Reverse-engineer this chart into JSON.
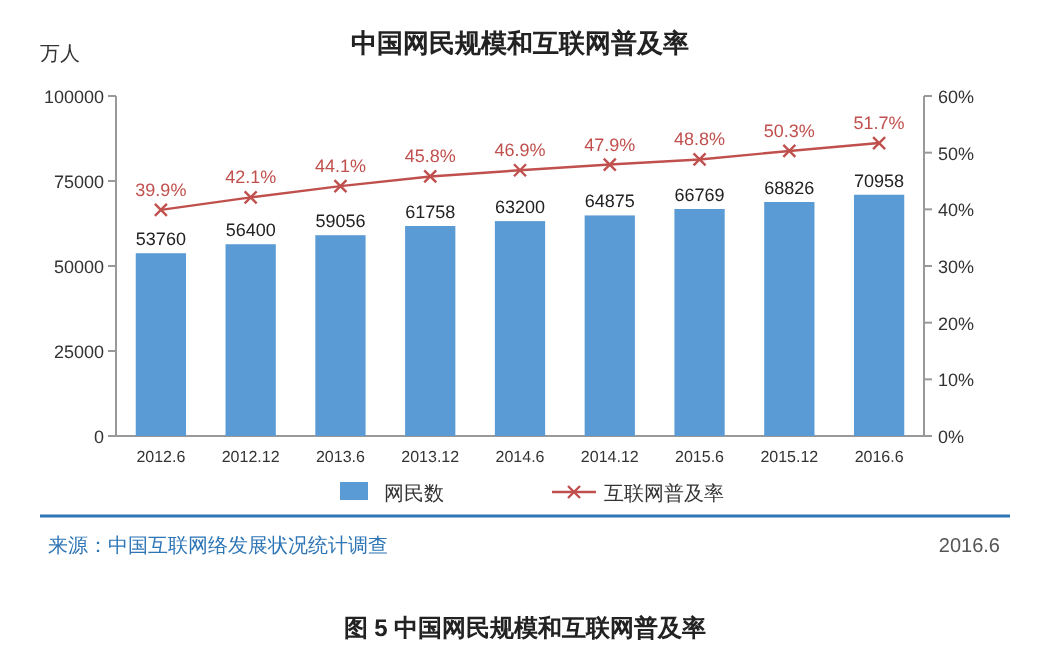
{
  "chart_data": {
    "type": "bar",
    "title": "中国网民规模和互联网普及率",
    "ylabel": "万人",
    "categories": [
      "2012.6",
      "2012.12",
      "2013.6",
      "2013.12",
      "2014.6",
      "2014.12",
      "2015.6",
      "2015.12",
      "2016.6"
    ],
    "series": [
      {
        "name": "网民数",
        "color": "#5b9bd5",
        "values": [
          53760,
          56400,
          59056,
          61758,
          63200,
          64875,
          66769,
          68826,
          70958
        ],
        "value_labels": [
          "53760",
          "56400",
          "59056",
          "61758",
          "63200",
          "64875",
          "66769",
          "68826",
          "70958"
        ]
      },
      {
        "name": "互联网普及率",
        "type": "line",
        "axis": "y2",
        "color": "#c0504d",
        "marker": "cross",
        "values": [
          39.9,
          42.1,
          44.1,
          45.8,
          46.9,
          47.9,
          48.8,
          50.3,
          51.7
        ],
        "value_labels": [
          "39.9%",
          "42.1%",
          "44.1%",
          "45.8%",
          "46.9%",
          "47.9%",
          "48.8%",
          "50.3%",
          "51.7%"
        ]
      }
    ],
    "ylim": [
      0,
      100000
    ],
    "yticks": [
      0,
      25000,
      50000,
      75000,
      100000
    ],
    "y2lim": [
      0,
      60
    ],
    "y2ticks": [
      {
        "value": 0,
        "label": "0%"
      },
      {
        "value": 10,
        "label": "10%"
      },
      {
        "value": 20,
        "label": "20%"
      },
      {
        "value": 30,
        "label": "30%"
      },
      {
        "value": 40,
        "label": "40%"
      },
      {
        "value": 50,
        "label": "50%"
      },
      {
        "value": 60,
        "label": "60%"
      }
    ],
    "legend": "bottom",
    "annotations": [
      "来源：中国互联网络发展状况统计调查",
      "2016.6",
      "图 5 中国网民规模和互联网普及率"
    ]
  }
}
